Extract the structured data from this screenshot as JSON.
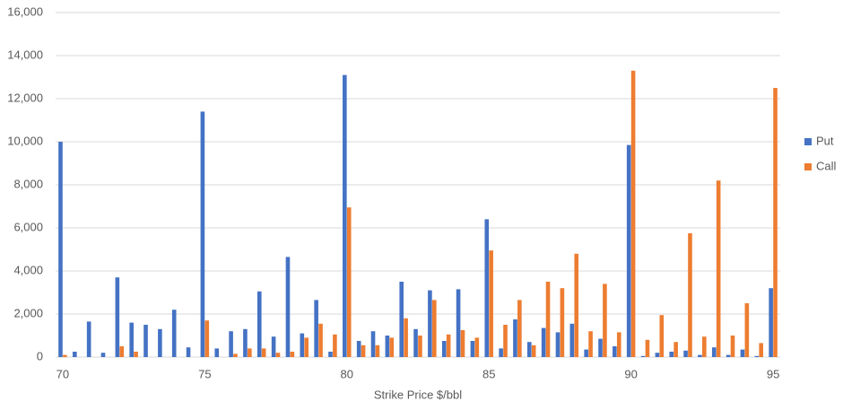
{
  "chart_data": {
    "type": "bar",
    "x_label": "Strike Price $/bbl",
    "categories": [
      "70",
      null,
      null,
      null,
      null,
      null,
      null,
      null,
      null,
      null,
      "75",
      null,
      null,
      null,
      null,
      null,
      null,
      null,
      null,
      null,
      "80",
      null,
      null,
      null,
      null,
      null,
      null,
      null,
      null,
      null,
      "85",
      null,
      null,
      null,
      null,
      null,
      null,
      null,
      null,
      null,
      "90",
      null,
      null,
      null,
      null,
      null,
      null,
      null,
      null,
      null,
      "95"
    ],
    "series": [
      {
        "name": "Put",
        "color": "#4472c4",
        "values": [
          10000,
          250,
          1650,
          200,
          3700,
          1600,
          1500,
          1300,
          2200,
          450,
          11400,
          400,
          1200,
          1300,
          3050,
          950,
          4650,
          1100,
          2650,
          250,
          13100,
          750,
          1200,
          1000,
          3500,
          1300,
          3100,
          750,
          3150,
          750,
          6400,
          400,
          1750,
          700,
          1350,
          1150,
          1550,
          350,
          850,
          500,
          9850,
          50,
          200,
          250,
          300,
          100,
          450,
          100,
          350,
          50,
          3200
        ]
      },
      {
        "name": "Call",
        "color": "#ed7d31",
        "values": [
          100,
          0,
          0,
          0,
          500,
          250,
          0,
          0,
          0,
          0,
          1700,
          0,
          150,
          400,
          400,
          200,
          250,
          900,
          1550,
          1050,
          6950,
          550,
          550,
          900,
          1800,
          1000,
          2650,
          1050,
          1250,
          900,
          4950,
          1500,
          2650,
          550,
          3500,
          3200,
          4800,
          1200,
          3400,
          1150,
          13300,
          800,
          1950,
          700,
          5750,
          950,
          8200,
          1000,
          2500,
          650,
          12500
        ]
      }
    ],
    "ylim": [
      0,
      16000
    ],
    "yticks": [
      0,
      {
        "value": 2000,
        "label": "2,000"
      },
      {
        "value": 4000,
        "label": "4,000"
      },
      {
        "value": 6000,
        "label": "6,000"
      },
      {
        "value": 8000,
        "label": "8,000"
      },
      {
        "value": 10000,
        "label": "10,000"
      },
      {
        "value": 12000,
        "label": "12,000"
      },
      {
        "value": 14000,
        "label": "14,000"
      },
      {
        "value": 16000,
        "label": "16,000"
      }
    ],
    "grid": true,
    "legend": "right"
  }
}
